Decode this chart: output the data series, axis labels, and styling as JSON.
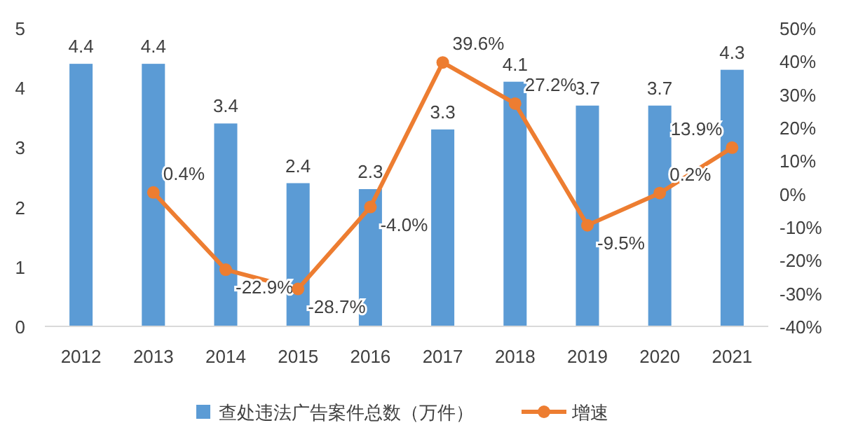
{
  "chart_data": {
    "type": "bar",
    "categories": [
      "2012",
      "2013",
      "2014",
      "2015",
      "2016",
      "2017",
      "2018",
      "2019",
      "2020",
      "2021"
    ],
    "series": [
      {
        "name": "查处违法广告案件总数（万件）",
        "color": "#5b9bd5",
        "values": [
          4.4,
          4.4,
          3.4,
          2.4,
          2.3,
          3.3,
          4.1,
          3.7,
          3.7,
          4.3
        ],
        "value_labels": [
          "4.4",
          "4.4",
          "3.4",
          "2.4",
          "2.3",
          "3.3",
          "4.1",
          "3.7",
          "3.7",
          "4.3"
        ]
      },
      {
        "name": "增速",
        "type": "line",
        "axis": "y2",
        "color": "#ed7d31",
        "marker": "circle",
        "values": [
          null,
          0.4,
          -22.9,
          -28.7,
          -4.0,
          39.6,
          27.2,
          -9.5,
          0.2,
          13.9
        ],
        "value_labels": [
          null,
          "0.4%",
          "-22.9%",
          "-28.7%",
          "-4.0%",
          "39.6%",
          "27.2%",
          "-9.5%",
          "0.2%",
          "13.9%"
        ]
      }
    ],
    "ylim": [
      0,
      5
    ],
    "yticks": [
      0,
      1,
      2,
      3,
      4,
      5
    ],
    "y2lim": [
      -40,
      50
    ],
    "y2ticks": [
      {
        "value": -40,
        "label": "-40%"
      },
      {
        "value": -30,
        "label": "-30%"
      },
      {
        "value": -20,
        "label": "-20%"
      },
      {
        "value": -10,
        "label": "-10%"
      },
      {
        "value": 0,
        "label": "0%"
      },
      {
        "value": 10,
        "label": "10%"
      },
      {
        "value": 20,
        "label": "20%"
      },
      {
        "value": 30,
        "label": "30%"
      },
      {
        "value": 40,
        "label": "40%"
      },
      {
        "value": 50,
        "label": "50%"
      }
    ],
    "legend": "bottom"
  }
}
